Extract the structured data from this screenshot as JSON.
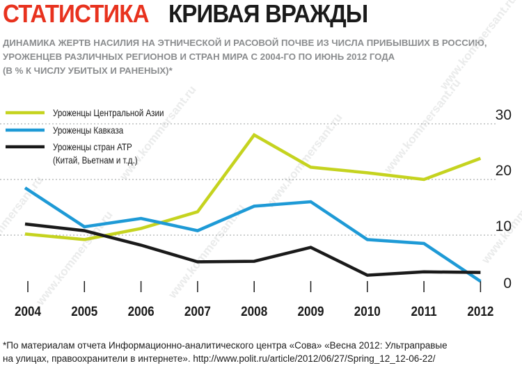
{
  "header": {
    "rubric": "СТАТИСТИКА",
    "title": "КРИВАЯ ВРАЖДЫ"
  },
  "subtitle": {
    "line1": "ДИНАМИКА ЖЕРТВ НАСИЛИЯ НА ЭТНИЧЕСКОЙ И РАСОВОЙ ПОЧВЕ ИЗ ЧИСЛА ПРИБЫВШИХ В РОССИЮ,",
    "line2": "УРОЖЕНЦЕВ РАЗЛИЧНЫХ РЕГИОНОВ И СТРАН МИРА С 2004-ГО ПО ИЮНЬ 2012 ГОДА",
    "line3": "(В % К ЧИСЛУ УБИТЫХ И РАНЕНЫХ)*"
  },
  "footnote": {
    "line1": "*По материалам отчета Информационно-аналитического центра «Сова» «Весна 2012: Ультраправые",
    "line2": "на улицах, правоохранители в интернете». http://www.polit.ru/article/2012/06/27/Spring_12_12-06-22/"
  },
  "watermark": "www.kommersant.ru",
  "chart_data": {
    "type": "line",
    "title": "КРИВАЯ ВРАЖДЫ",
    "xlabel": "",
    "ylabel": "",
    "x": [
      "2004",
      "2005",
      "2006",
      "2007",
      "2008",
      "2009",
      "2010",
      "2011",
      "2012"
    ],
    "ylim": [
      0,
      30
    ],
    "yticks": [
      0,
      10,
      20,
      30
    ],
    "grid": "dashed horizontal",
    "legend_position": "top-left",
    "series": [
      {
        "name": "Уроженцы Центральной Азии",
        "color": "#c5d31f",
        "values": [
          10.2,
          9.2,
          11.2,
          14.2,
          28.0,
          22.2,
          21.2,
          20.0,
          23.8
        ]
      },
      {
        "name": "Уроженцы Кавказа",
        "color": "#1e9ad6",
        "values": [
          18.5,
          11.5,
          13.0,
          10.8,
          15.2,
          16.0,
          9.2,
          8.5,
          1.7
        ]
      },
      {
        "name": "Уроженцы стран АТР",
        "name_line2": "(Китай, Вьетнам и т.д.)",
        "color": "#1a1a1a",
        "values": [
          12.0,
          10.8,
          8.2,
          5.2,
          5.3,
          7.8,
          2.8,
          3.4,
          3.3
        ]
      }
    ]
  }
}
